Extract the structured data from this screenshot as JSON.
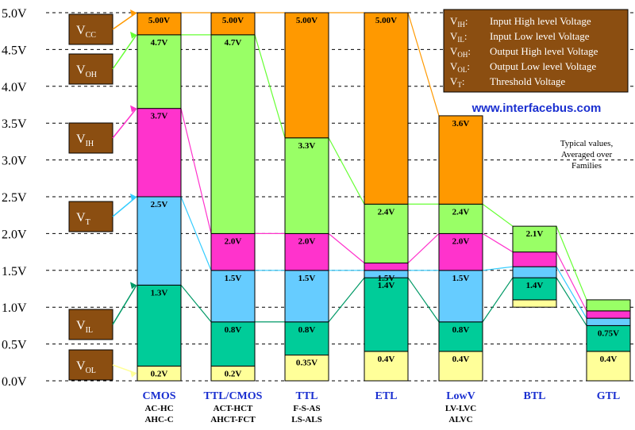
{
  "chart_data": {
    "type": "bar",
    "ylim": [
      0,
      5
    ],
    "y_ticks": [
      "0.0V",
      "0.5V",
      "1.0V",
      "1.5V",
      "2.0V",
      "2.5V",
      "3.0V",
      "3.5V",
      "4.0V",
      "4.5V",
      "5.0V"
    ],
    "y_tick_values": [
      0,
      0.5,
      1.0,
      1.5,
      2.0,
      2.5,
      3.0,
      3.5,
      4.0,
      4.5,
      5.0
    ],
    "grid": "horizontal dashed",
    "colors": {
      "VOL": "#ffff99",
      "VIL": "#00cc99",
      "VT": "#66ccff",
      "VIH": "#ff33cc",
      "VOH": "#99ff66",
      "VCC": "#ff9900",
      "guide_VCC": "#ff9900",
      "guide_VOH": "#66ff33",
      "guide_VIH": "#ff33cc",
      "guide_VT": "#33ccff",
      "guide_VIL": "#009966",
      "badge": "#8b4e11",
      "category_text": "#1a2fd0"
    },
    "categories": [
      {
        "name": "CMOS",
        "sub1": "AC-HC",
        "sub2": "AHC-C",
        "vcc": 5.0,
        "voh": 4.7,
        "vih": 3.7,
        "vt": 2.5,
        "vil": 1.3,
        "vol": 0.2,
        "labels": {
          "vcc": "5.00V",
          "voh": "4.7V",
          "vih": "3.7V",
          "vt": "2.5V",
          "vil": "1.3V",
          "vol": "0.2V"
        }
      },
      {
        "name": "TTL/CMOS",
        "sub1": "ACT-HCT",
        "sub2": "AHCT-FCT",
        "vcc": 5.0,
        "voh": 4.7,
        "vih": 2.0,
        "vt": 1.5,
        "vil": 0.8,
        "vol": 0.2,
        "labels": {
          "vcc": "5.00V",
          "voh": "4.7V",
          "vih": "2.0V",
          "vt": "1.5V",
          "vil": "0.8V",
          "vol": "0.2V"
        }
      },
      {
        "name": "TTL",
        "sub1": "F-S-AS",
        "sub2": "LS-ALS",
        "vcc": 5.0,
        "voh": 3.3,
        "vih": 2.0,
        "vt": 1.5,
        "vil": 0.8,
        "vol": 0.35,
        "labels": {
          "vcc": "5.00V",
          "voh": "3.3V",
          "vih": "2.0V",
          "vt": "1.5V",
          "vil": "0.8V",
          "vol": "0.35V"
        }
      },
      {
        "name": "ETL",
        "sub1": "",
        "sub2": "",
        "vcc": 5.0,
        "voh": 2.4,
        "vih": 1.6,
        "vt": 1.5,
        "vil": 1.4,
        "vol": 0.4,
        "labels": {
          "vcc": "5.00V",
          "voh": "2.4V",
          "vih": "",
          "vt": "1.5V",
          "vil": "1.4V",
          "vol": "0.4V"
        }
      },
      {
        "name": "LowV",
        "sub1": "LV-LVC",
        "sub2": "ALVC",
        "vcc": 3.6,
        "voh": 2.4,
        "vih": 2.0,
        "vt": 1.5,
        "vil": 0.8,
        "vol": 0.4,
        "labels": {
          "vcc": "3.6V",
          "voh": "2.4V",
          "vih": "2.0V",
          "vt": "1.5V",
          "vil": "0.8V",
          "vol": "0.4V"
        }
      },
      {
        "name": "BTL",
        "sub1": "",
        "sub2": "",
        "vcc": null,
        "voh": 2.1,
        "vih": 1.75,
        "vt": 1.55,
        "vil": 1.4,
        "vol": 1.1,
        "bottom": 1.0,
        "labels": {
          "vcc": "",
          "voh": "2.1V",
          "vih": "",
          "vt": "",
          "vil": "1.4V",
          "vol": ""
        }
      },
      {
        "name": "GTL",
        "sub1": "",
        "sub2": "",
        "vcc": null,
        "voh": 1.1,
        "vih": 0.95,
        "vt": 0.85,
        "vil": 0.75,
        "vol": 0.4,
        "labels": {
          "vcc": "",
          "voh": "",
          "vih": "",
          "vt": "",
          "vil": "0.75V",
          "vol": "0.4V"
        }
      }
    ],
    "badges": [
      {
        "key": "VCC",
        "main": "V",
        "sub": "CC"
      },
      {
        "key": "VOH",
        "main": "V",
        "sub": "OH"
      },
      {
        "key": "VIH",
        "main": "V",
        "sub": "IH"
      },
      {
        "key": "VT",
        "main": "V",
        "sub": "T"
      },
      {
        "key": "VIL",
        "main": "V",
        "sub": "IL"
      },
      {
        "key": "VOL",
        "main": "V",
        "sub": "OL"
      }
    ],
    "legend": [
      {
        "main": "V",
        "sub": "IH",
        "desc": "Input High level Voltage"
      },
      {
        "main": "V",
        "sub": "IL",
        "desc": "Input Low level Voltage"
      },
      {
        "main": "V",
        "sub": "OH",
        "desc": "Output High level Voltage"
      },
      {
        "main": "V",
        "sub": "OL",
        "desc": "Output Low level Voltage"
      },
      {
        "main": "V",
        "sub": "T",
        "desc": "Threshold Voltage"
      }
    ],
    "website": "www.interfacebus.com",
    "note": [
      "Typical values,",
      "Averaged over",
      "Families"
    ]
  }
}
